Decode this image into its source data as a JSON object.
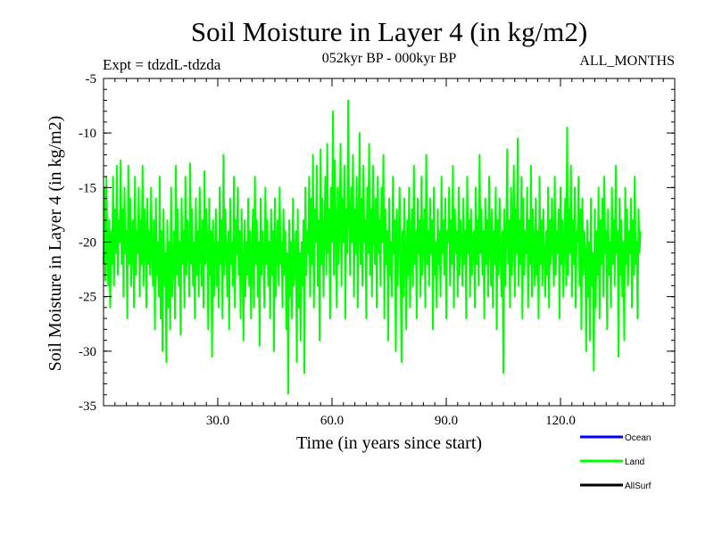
{
  "chart_data": {
    "type": "line",
    "title": "Soil Moisture in Layer 4 (in kg/m2)",
    "subtitle_left": "Expt = tdzdL-tdzda",
    "subtitle_center": "052kyr BP - 000kyr BP",
    "subtitle_right": "ALL_MONTHS",
    "xlabel": "Time (in years since start)",
    "ylabel": "Soil Moisture in Layer 4 (in kg/m2)",
    "xlim": [
      0,
      150
    ],
    "ylim": [
      -35,
      -5
    ],
    "x_ticks": [
      30,
      60,
      90,
      120
    ],
    "x_tick_labels": [
      "30.0",
      "60.0",
      "90.0",
      "120.0"
    ],
    "y_ticks": [
      -5,
      -10,
      -15,
      -20,
      -25,
      -30,
      -35
    ],
    "y_tick_labels": [
      "-5",
      "-10",
      "-15",
      "-20",
      "-25",
      "-30",
      "-35"
    ],
    "legend": [
      {
        "name": "Ocean",
        "label": "Ocean",
        "color": "#0000ff"
      },
      {
        "name": "Land",
        "label": "Land",
        "color": "#00ff00"
      },
      {
        "name": "AllSurf",
        "label": "AllSurf",
        "color": "#000000"
      }
    ],
    "series": [
      {
        "name": "Land",
        "color": "#00ff00",
        "x_start": 0,
        "x_step": 0.25,
        "values": [
          -22,
          -15,
          -23.5,
          -14,
          -21,
          -24,
          -18,
          -26,
          -19,
          -22,
          -14,
          -24,
          -17,
          -21,
          -13,
          -23,
          -18,
          -20,
          -12.5,
          -22,
          -17,
          -25,
          -15,
          -21,
          -19,
          -27,
          -13,
          -22,
          -16,
          -24,
          -20,
          -18,
          -26,
          -14,
          -23,
          -19,
          -21,
          -15,
          -25,
          -18,
          -22,
          -13,
          -24,
          -17,
          -20,
          -26,
          -16,
          -22,
          -19,
          -23,
          -15,
          -21,
          -24,
          -18,
          -28,
          -16,
          -23,
          -20,
          -25,
          -14,
          -27,
          -19,
          -30,
          -17,
          -24,
          -21,
          -31,
          -18,
          -26,
          -20,
          -28,
          -15,
          -25,
          -22,
          -19,
          -27,
          -13,
          -23,
          -17,
          -24,
          -20,
          -28.5,
          -16,
          -22,
          -19,
          -26,
          -14,
          -23,
          -18,
          -21,
          -25,
          -12.8,
          -22,
          -17,
          -24,
          -20,
          -27,
          -16,
          -23,
          -19,
          -25,
          -15,
          -21,
          -24,
          -18,
          -26,
          -13.5,
          -22,
          -17,
          -20,
          -28,
          -16,
          -23,
          -19,
          -30.5,
          -18,
          -25,
          -21,
          -17,
          -24,
          -20,
          -26,
          -15,
          -22,
          -18,
          -27,
          -12,
          -23,
          -17,
          -21,
          -25,
          -19,
          -28,
          -16,
          -22,
          -20,
          -24,
          -14,
          -26,
          -18,
          -21,
          -15,
          -23,
          -19,
          -27,
          -17,
          -22,
          -29,
          -18,
          -25,
          -20,
          -23,
          -16,
          -24,
          -19,
          -27,
          -21,
          -17,
          -26,
          -14,
          -22,
          -18,
          -25,
          -20,
          -29.5,
          -16,
          -23,
          -19,
          -21,
          -26,
          -15,
          -22,
          -18,
          -24,
          -20,
          -27,
          -17,
          -23,
          -19,
          -30,
          -16,
          -25,
          -21,
          -18,
          -24,
          -15,
          -22,
          -20,
          -26,
          -17,
          -23,
          -19,
          -28,
          -21,
          -33.9,
          -18,
          -25,
          -20,
          -27,
          -16,
          -24,
          -22,
          -19,
          -31,
          -17,
          -26,
          -21,
          -29,
          -20,
          -24,
          -18,
          -32,
          -15,
          -23,
          -19,
          -21,
          -14,
          -25,
          -16,
          -22,
          -12,
          -26,
          -17,
          -20,
          -13,
          -24,
          -18,
          -29,
          -11.5,
          -22,
          -16,
          -25,
          -19,
          -14,
          -23,
          -11,
          -21,
          -17,
          -27,
          -15,
          -20,
          -8,
          -23,
          -12.5,
          -19,
          -26,
          -15,
          -22,
          -18,
          -11,
          -24,
          -16,
          -20,
          -13,
          -27,
          -17,
          -21,
          -7,
          -18,
          -23,
          -15,
          -20,
          -12,
          -25,
          -17,
          -21,
          -14,
          -26,
          -19,
          -10,
          -22,
          -16,
          -24,
          -13,
          -20,
          -18,
          -27,
          -15,
          -21,
          -11,
          -23,
          -17,
          -25,
          -13,
          -19,
          -22,
          -16,
          -26,
          -14,
          -21,
          -18,
          -24,
          -15,
          -20,
          -12,
          -27,
          -17,
          -22,
          -19,
          -29,
          -16,
          -23,
          -20,
          -25,
          -14,
          -21,
          -18,
          -30,
          -17,
          -24,
          -20,
          -15,
          -22,
          -31,
          -19,
          -25,
          -16,
          -21,
          -28,
          -18,
          -23,
          -15,
          -26,
          -20,
          -17,
          -24,
          -13,
          -22,
          -19,
          -27,
          -16,
          -21,
          -18,
          -25,
          -14,
          -23,
          -20,
          -17,
          -26,
          -12,
          -22,
          -19,
          -24,
          -16,
          -21,
          -18,
          -28,
          -15,
          -23,
          -20,
          -26,
          -17,
          -22,
          -19,
          -25,
          -14,
          -21,
          -18,
          -23,
          -16,
          -27,
          -19,
          -20,
          -15,
          -24,
          -18,
          -22,
          -13,
          -26,
          -17,
          -21,
          -19,
          -25,
          -15,
          -23,
          -18,
          -20,
          -24,
          -16,
          -22,
          -19,
          -27,
          -14,
          -21,
          -18,
          -25,
          -17,
          -23,
          -20,
          -19,
          -26,
          -15,
          -22,
          -18,
          -24,
          -12,
          -21,
          -17,
          -23,
          -19,
          -27,
          -16,
          -22,
          -18,
          -25,
          -14,
          -20,
          -24,
          -17,
          -26,
          -19,
          -22,
          -15,
          -28,
          -18,
          -23,
          -16,
          -21,
          -25,
          -19,
          -32,
          -17,
          -24,
          -20,
          -11.5,
          -22,
          -18,
          -26,
          -15,
          -23,
          -19,
          -13,
          -25,
          -17,
          -21,
          -10.5,
          -24,
          -18,
          -22,
          -14,
          -27,
          -16,
          -23,
          -19,
          -21,
          -15,
          -26,
          -18,
          -22,
          -13,
          -25,
          -17,
          -20,
          -24,
          -16,
          -23,
          -19,
          -27,
          -14,
          -22,
          -18,
          -24,
          -17,
          -21,
          -25,
          -19,
          -23,
          -15,
          -26,
          -18,
          -22,
          -16,
          -20,
          -24,
          -14,
          -23,
          -19,
          -21,
          -17,
          -27,
          -15,
          -22,
          -18,
          -25,
          -20,
          -16,
          -24,
          -9.5,
          -23,
          -17,
          -21,
          -13,
          -25,
          -18,
          -22,
          -15,
          -26,
          -19,
          -20,
          -14,
          -24,
          -17,
          -28,
          -16,
          -23,
          -19,
          -21,
          -30,
          -18,
          -25,
          -20,
          -29,
          -16,
          -24,
          -21,
          -31.8,
          -17,
          -26,
          -19,
          -23,
          -15,
          -27,
          -18,
          -22,
          -16,
          -25,
          -14,
          -21,
          -19,
          -28,
          -17,
          -23,
          -20,
          -26,
          -15,
          -22,
          -18,
          -24,
          -13,
          -21,
          -19,
          -30.5,
          -16,
          -23,
          -18,
          -25,
          -20,
          -29,
          -15,
          -22,
          -17,
          -24,
          -19,
          -21,
          -16,
          -26,
          -18,
          -23,
          -14,
          -22,
          -20,
          -27,
          -17,
          -21,
          -19
        ]
      }
    ]
  }
}
